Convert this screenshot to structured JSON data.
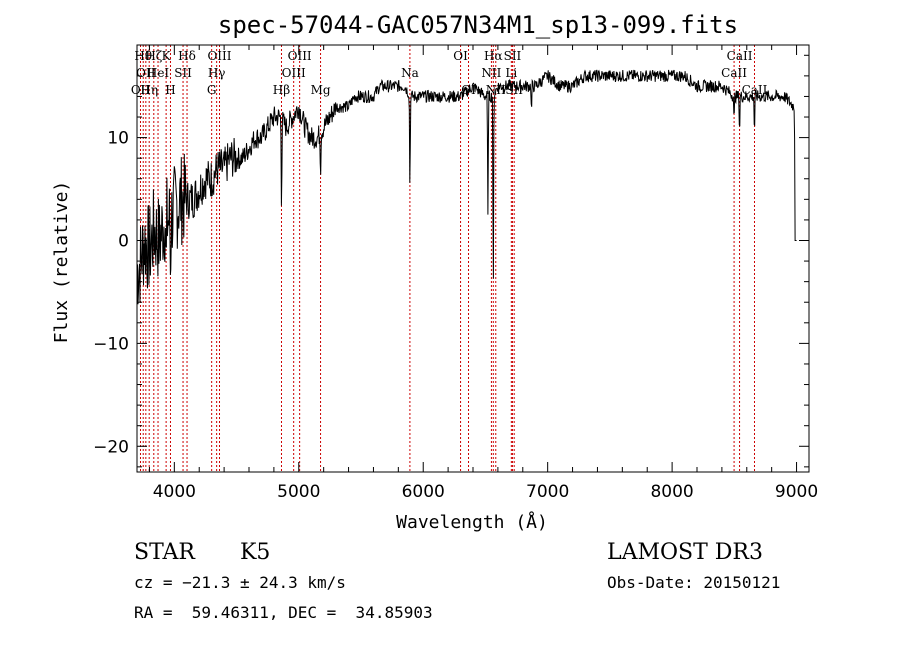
{
  "chart_data": {
    "type": "line",
    "title": "spec-57044-GAC057N34M1_sp13-099.fits",
    "xlabel": "Wavelength (Å)",
    "ylabel": "Flux (relative)",
    "xlim": [
      3700,
      9100
    ],
    "ylim": [
      -22.5,
      19
    ],
    "xticks": [
      4000,
      5000,
      6000,
      7000,
      8000,
      9000
    ],
    "xtick_labels": [
      "4000",
      "5000",
      "6000",
      "7000",
      "8000",
      "9000"
    ],
    "yticks": [
      -20,
      -10,
      0,
      10
    ],
    "ytick_labels": [
      "−20",
      "−10",
      "0",
      "10"
    ],
    "grid": false,
    "series": [
      {
        "x": [
          3700,
          3730,
          3760,
          3800,
          3840,
          3880,
          3920,
          3960,
          4000,
          4050,
          4100,
          4150,
          4200,
          4250,
          4300,
          4350,
          4400,
          4450,
          4500,
          4550,
          4600,
          4650,
          4700,
          4750,
          4800,
          4850,
          4900,
          4950,
          5000,
          5050,
          5100,
          5150,
          5200,
          5250,
          5300,
          5350,
          5400,
          5450,
          5500,
          5550,
          5600,
          5650,
          5700,
          5750,
          5800,
          5850,
          5900,
          5950,
          6000,
          6100,
          6200,
          6300,
          6400,
          6500,
          6560,
          6600,
          6700,
          6800,
          6900,
          7000,
          7100,
          7200,
          7300,
          7400,
          7500,
          7600,
          7700,
          7800,
          7900,
          8000,
          8100,
          8200,
          8300,
          8400,
          8500,
          8550,
          8600,
          8650,
          8700,
          8800,
          8900,
          8980,
          9000
        ],
        "y": [
          -3,
          -2,
          0,
          -1,
          1,
          0,
          2,
          2,
          3,
          4,
          4,
          4,
          5,
          6,
          6,
          7,
          7,
          8,
          8,
          8,
          9,
          10,
          10,
          11,
          12,
          12,
          11,
          12,
          13,
          11,
          10,
          10,
          11,
          12,
          13,
          13,
          13,
          14,
          14,
          14,
          14,
          15,
          15,
          15,
          15,
          15,
          14,
          14,
          14,
          14,
          14,
          14,
          15,
          14,
          14,
          15,
          15,
          15,
          15,
          16,
          15,
          15,
          16,
          16,
          16,
          16,
          16,
          16,
          16,
          16,
          16,
          15,
          15,
          15,
          14,
          14,
          14,
          14,
          14,
          14,
          14,
          13,
          0
        ]
      }
    ],
    "line_markers": [
      {
        "x": 3728,
        "label": "OII",
        "row": 2
      },
      {
        "x": 3750,
        "label": "Hθ",
        "row": 0
      },
      {
        "x": 3771,
        "label": "OII",
        "row": 1
      },
      {
        "x": 3798,
        "label": "Hη",
        "row": 2
      },
      {
        "x": 3835,
        "label": "Hζ",
        "row": 0
      },
      {
        "x": 3869,
        "label": "HeI",
        "row": 1
      },
      {
        "x": 3934,
        "label": "K",
        "row": 0
      },
      {
        "x": 3969,
        "label": "H",
        "row": 2
      },
      {
        "x": 4070,
        "label": "SII",
        "row": 1
      },
      {
        "x": 4102,
        "label": "Hδ",
        "row": 0
      },
      {
        "x": 4300,
        "label": "G",
        "row": 2
      },
      {
        "x": 4340,
        "label": "Hγ",
        "row": 1
      },
      {
        "x": 4363,
        "label": "OIII",
        "row": 0
      },
      {
        "x": 4861,
        "label": "Hβ",
        "row": 2
      },
      {
        "x": 4959,
        "label": "OIII",
        "row": 1
      },
      {
        "x": 5007,
        "label": "OIII",
        "row": 0
      },
      {
        "x": 5175,
        "label": "Mg",
        "row": 2
      },
      {
        "x": 5893,
        "label": "Na",
        "row": 1
      },
      {
        "x": 6300,
        "label": "OI",
        "row": 0
      },
      {
        "x": 6364,
        "label": "OI",
        "row": 2
      },
      {
        "x": 6548,
        "label": "NII",
        "row": 1
      },
      {
        "x": 6563,
        "label": "Hα",
        "row": 0
      },
      {
        "x": 6583,
        "label": "NII",
        "row": 2
      },
      {
        "x": 6708,
        "label": "Li",
        "row": 1
      },
      {
        "x": 6717,
        "label": "SII",
        "row": 0
      },
      {
        "x": 6731,
        "label": "SII",
        "row": 2
      },
      {
        "x": 8498,
        "label": "CaII",
        "row": 1
      },
      {
        "x": 8542,
        "label": "CaII",
        "row": 0
      },
      {
        "x": 8662,
        "label": "CaII",
        "row": 2
      }
    ]
  },
  "info": {
    "class_label": "STAR",
    "subclass": "K5",
    "cz": "cz = −21.3 ± 24.3 km/s",
    "coords": "RA =  59.46311, DEC =  34.85903",
    "survey": "LAMOST DR3",
    "obs_date": "Obs-Date: 20150121"
  },
  "colors": {
    "spectrum": "#000000",
    "line_marker": "#cc0000",
    "axes": "#000000"
  }
}
